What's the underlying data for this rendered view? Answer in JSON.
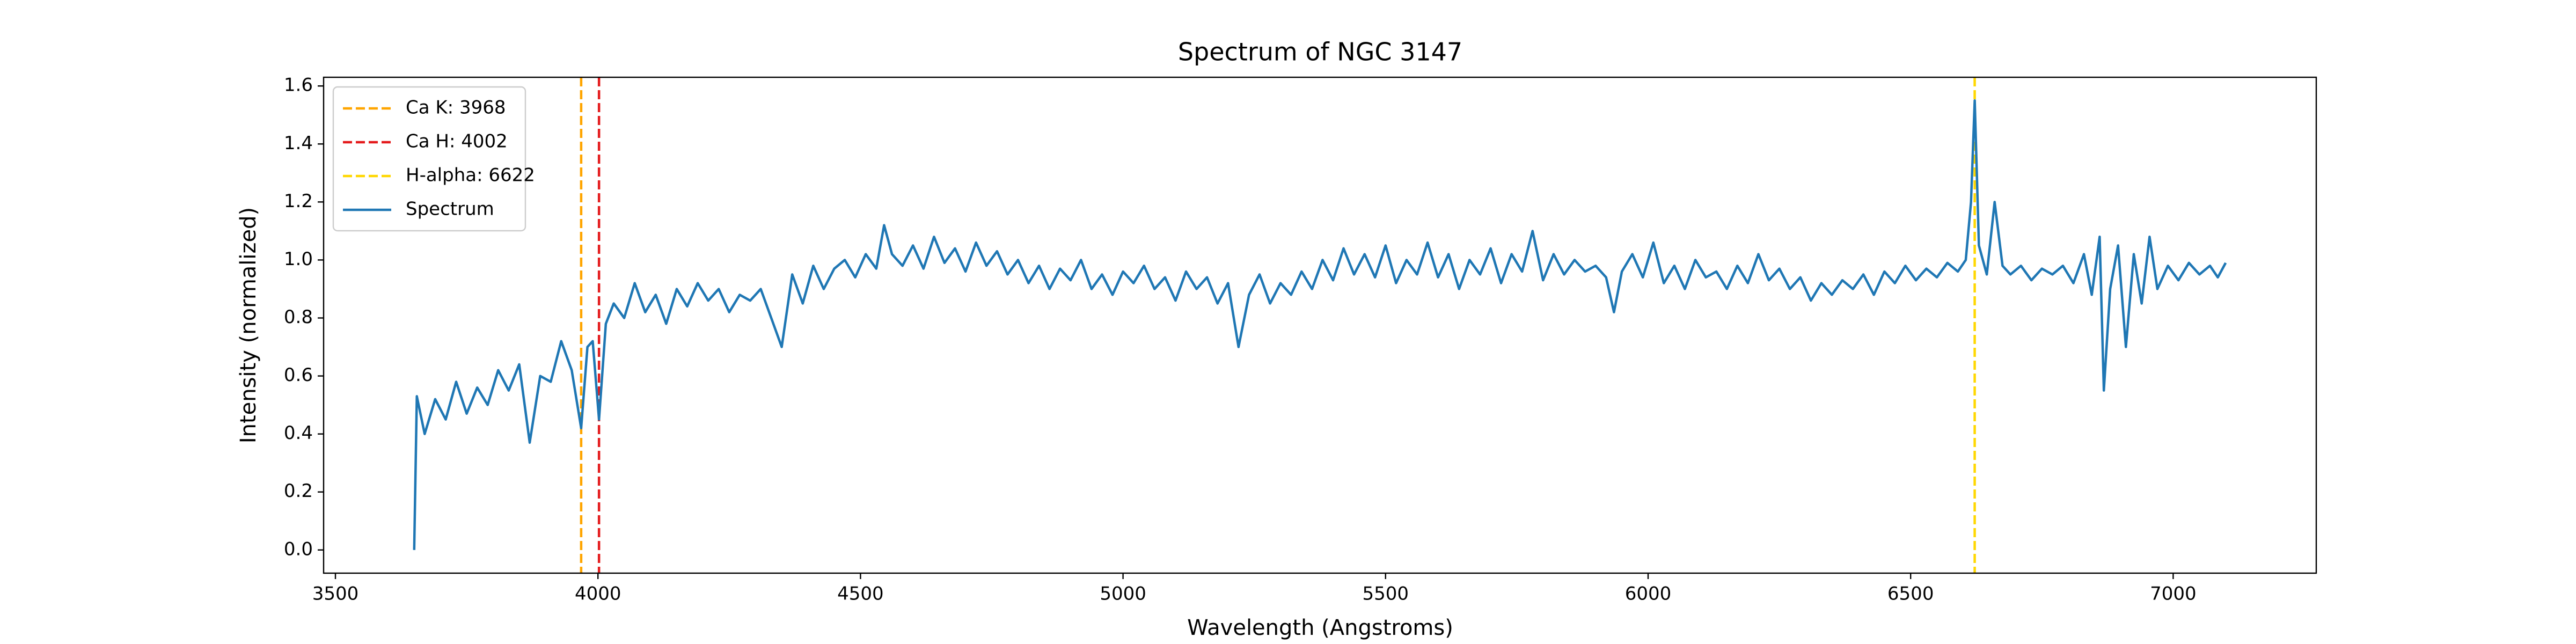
{
  "chart_data": {
    "type": "line",
    "title": "Spectrum of NGC 3147",
    "x_label": "Wavelength (Angstroms)",
    "y_label": "Intensity (normalized)",
    "xlim": [
      3477.5,
      7272.5
    ],
    "ylim": [
      -0.08,
      1.63
    ],
    "xticks": [
      3500,
      4000,
      4500,
      5000,
      5500,
      6000,
      6500,
      7000
    ],
    "yticks": [
      {
        "value": 0,
        "label": "0.0"
      },
      0.2,
      0.4,
      0.6,
      0.8,
      {
        "value": 1,
        "label": "1.0"
      },
      1.2,
      1.4,
      1.6
    ],
    "legend": "upper left",
    "vlines": [
      {
        "name": "Ca K: 3968",
        "x": 3968,
        "color": "orange"
      },
      {
        "name": "Ca H: 4002",
        "x": 4002,
        "color": "#e41a1c"
      },
      {
        "name": "H-alpha: 6622",
        "x": 6622,
        "color": "gold"
      }
    ],
    "x": [
      3650,
      3655,
      3670,
      3690,
      3710,
      3730,
      3750,
      3770,
      3790,
      3810,
      3830,
      3850,
      3870,
      3890,
      3910,
      3930,
      3950,
      3968,
      3980,
      3990,
      4002,
      4015,
      4030,
      4050,
      4070,
      4090,
      4110,
      4130,
      4150,
      4170,
      4190,
      4210,
      4230,
      4250,
      4270,
      4290,
      4310,
      4330,
      4350,
      4370,
      4390,
      4410,
      4430,
      4450,
      4470,
      4490,
      4510,
      4530,
      4545,
      4560,
      4580,
      4600,
      4620,
      4640,
      4660,
      4680,
      4700,
      4720,
      4740,
      4760,
      4780,
      4800,
      4820,
      4840,
      4860,
      4880,
      4900,
      4920,
      4940,
      4960,
      4980,
      5000,
      5020,
      5040,
      5060,
      5080,
      5100,
      5120,
      5140,
      5160,
      5180,
      5200,
      5220,
      5240,
      5260,
      5280,
      5300,
      5320,
      5340,
      5360,
      5380,
      5400,
      5420,
      5440,
      5460,
      5480,
      5500,
      5520,
      5540,
      5560,
      5580,
      5600,
      5620,
      5640,
      5660,
      5680,
      5700,
      5720,
      5740,
      5760,
      5780,
      5800,
      5820,
      5840,
      5860,
      5880,
      5900,
      5920,
      5935,
      5950,
      5970,
      5990,
      6010,
      6030,
      6050,
      6070,
      6090,
      6110,
      6130,
      6150,
      6170,
      6190,
      6210,
      6230,
      6250,
      6270,
      6290,
      6310,
      6330,
      6350,
      6370,
      6390,
      6410,
      6430,
      6450,
      6470,
      6490,
      6510,
      6530,
      6550,
      6570,
      6590,
      6605,
      6615,
      6622,
      6630,
      6645,
      6660,
      6675,
      6690,
      6710,
      6730,
      6750,
      6770,
      6790,
      6810,
      6830,
      6845,
      6860,
      6868,
      6880,
      6895,
      6910,
      6925,
      6940,
      6955,
      6970,
      6990,
      7010,
      7030,
      7050,
      7070,
      7085,
      7100
    ],
    "series": [
      {
        "name": "Spectrum",
        "color": "#1f77b4",
        "values": [
          0.0,
          0.53,
          0.4,
          0.52,
          0.45,
          0.58,
          0.47,
          0.56,
          0.5,
          0.62,
          0.55,
          0.64,
          0.37,
          0.6,
          0.58,
          0.72,
          0.62,
          0.42,
          0.7,
          0.72,
          0.45,
          0.78,
          0.85,
          0.8,
          0.92,
          0.82,
          0.88,
          0.78,
          0.9,
          0.84,
          0.92,
          0.86,
          0.9,
          0.82,
          0.88,
          0.86,
          0.9,
          0.8,
          0.7,
          0.95,
          0.85,
          0.98,
          0.9,
          0.97,
          1.0,
          0.94,
          1.02,
          0.97,
          1.12,
          1.02,
          0.98,
          1.05,
          0.97,
          1.08,
          0.99,
          1.04,
          0.96,
          1.06,
          0.98,
          1.03,
          0.95,
          1.0,
          0.92,
          0.98,
          0.9,
          0.97,
          0.93,
          1.0,
          0.9,
          0.95,
          0.88,
          0.96,
          0.92,
          0.98,
          0.9,
          0.94,
          0.86,
          0.96,
          0.9,
          0.94,
          0.85,
          0.92,
          0.7,
          0.88,
          0.95,
          0.85,
          0.92,
          0.88,
          0.96,
          0.9,
          1.0,
          0.93,
          1.04,
          0.95,
          1.02,
          0.94,
          1.05,
          0.92,
          1.0,
          0.95,
          1.06,
          0.94,
          1.02,
          0.9,
          1.0,
          0.95,
          1.04,
          0.92,
          1.02,
          0.96,
          1.1,
          0.93,
          1.02,
          0.95,
          1.0,
          0.96,
          0.98,
          0.94,
          0.82,
          0.96,
          1.02,
          0.94,
          1.06,
          0.92,
          0.98,
          0.9,
          1.0,
          0.94,
          0.96,
          0.9,
          0.98,
          0.92,
          1.02,
          0.93,
          0.97,
          0.9,
          0.94,
          0.86,
          0.92,
          0.88,
          0.93,
          0.9,
          0.95,
          0.88,
          0.96,
          0.92,
          0.98,
          0.93,
          0.97,
          0.94,
          0.99,
          0.96,
          1.0,
          1.2,
          1.55,
          1.05,
          0.95,
          1.2,
          0.98,
          0.95,
          0.98,
          0.93,
          0.97,
          0.95,
          0.98,
          0.92,
          1.02,
          0.88,
          1.08,
          0.55,
          0.9,
          1.05,
          0.7,
          1.02,
          0.85,
          1.08,
          0.9,
          0.98,
          0.93,
          0.99,
          0.95,
          0.98,
          0.94,
          0.99
        ]
      }
    ]
  }
}
